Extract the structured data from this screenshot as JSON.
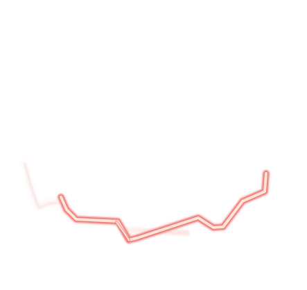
{
  "stroke": {
    "core_color": "#fde2d2",
    "edge_color": "#f06a6a",
    "glow_color": "#f7a3a3",
    "fade_color": "#fbe0dd"
  }
}
